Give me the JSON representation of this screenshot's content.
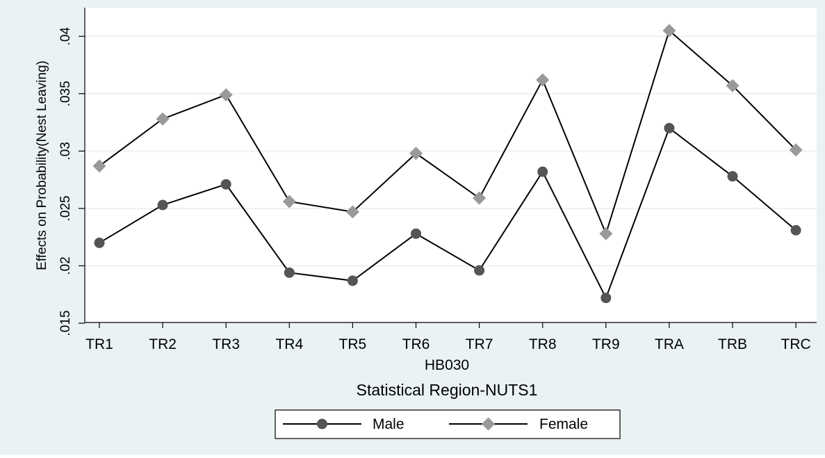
{
  "chart_data": {
    "type": "line",
    "title": "",
    "ylabel": "Effects on Probability(Nest Leaving)",
    "xlabel_lines": [
      "HB030",
      "Statistical Region-NUTS1"
    ],
    "categories": [
      "TR1",
      "TR2",
      "TR3",
      "TR4",
      "TR5",
      "TR6",
      "TR7",
      "TR8",
      "TR9",
      "TRA",
      "TRB",
      "TRC"
    ],
    "ylim": [
      0.015,
      0.0405
    ],
    "yticks": [
      0.015,
      0.02,
      0.025,
      0.03,
      0.035,
      0.04
    ],
    "ytick_labels": [
      ".015",
      ".02",
      ".025",
      ".03",
      ".035",
      ".04"
    ],
    "grid": true,
    "legend_position": "bottom",
    "series": [
      {
        "name": "Male",
        "marker": "circle",
        "marker_color": "#555555",
        "line_color": "#000000",
        "values": [
          0.022,
          0.0253,
          0.0271,
          0.0194,
          0.0187,
          0.0228,
          0.0196,
          0.0282,
          0.0172,
          0.032,
          0.0278,
          0.0231
        ]
      },
      {
        "name": "Female",
        "marker": "diamond",
        "marker_color": "#999999",
        "line_color": "#000000",
        "values": [
          0.0287,
          0.0328,
          0.0349,
          0.0256,
          0.0247,
          0.0298,
          0.0259,
          0.0362,
          0.0228,
          0.0405,
          0.0357,
          0.0301
        ]
      }
    ]
  },
  "colors": {
    "outer_background": "#eaf2f3",
    "plot_background": "#ffffff",
    "grid": "#eaf2f3"
  }
}
